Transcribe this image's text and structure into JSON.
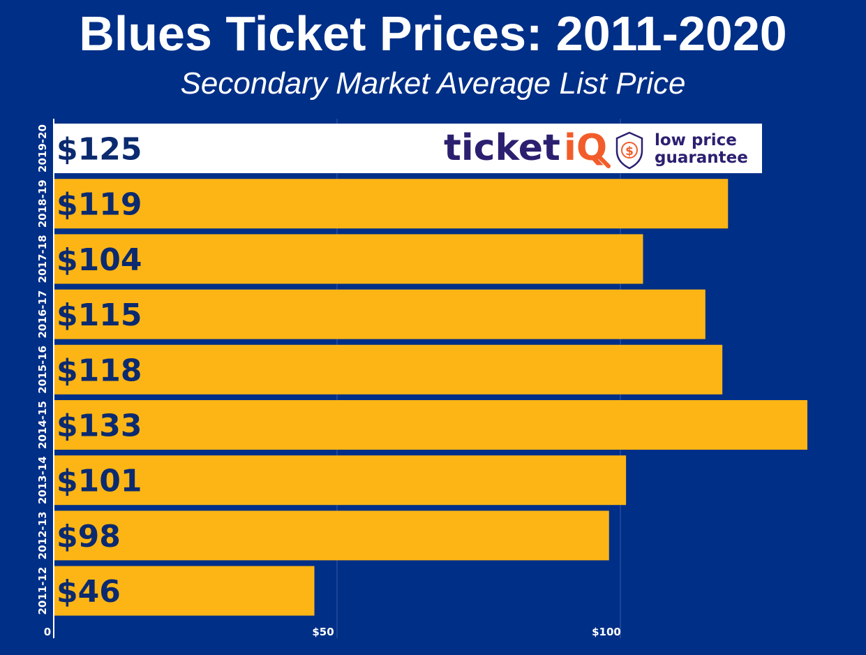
{
  "chart_data": {
    "type": "bar",
    "orientation": "horizontal",
    "title": "Blues Ticket Prices: 2011-2020",
    "subtitle": "Secondary Market Average List Price",
    "categories": [
      "2019-20",
      "2018-19",
      "2017-18",
      "2016-17",
      "2015-16",
      "2014-15",
      "2013-14",
      "2012-13",
      "2011-12"
    ],
    "values": [
      125,
      119,
      104,
      115,
      118,
      133,
      101,
      98,
      46
    ],
    "value_labels": [
      "$125",
      "$119",
      "$104",
      "$115",
      "$118",
      "$133",
      "$101",
      "$98",
      "$46"
    ],
    "highlight_category": "2019-20",
    "xlim": [
      0,
      133
    ],
    "x_ticks": [
      0,
      50,
      100
    ],
    "x_tick_labels": [
      "0",
      "$50",
      "$100"
    ],
    "grid": true,
    "colors": {
      "background": "#002F87",
      "bar": "#FDB515",
      "highlight_bar": "#FFFFFF",
      "bar_label": "#0B2A6F",
      "grid": "#3A5AA8"
    }
  },
  "logo": {
    "brand_ticket": "ticket",
    "brand_iq": "iQ",
    "tagline_line1": "low price",
    "tagline_line2": "guarantee",
    "badge_symbol": "$",
    "colors": {
      "brand": "#2B2070",
      "accent": "#F25C2B"
    }
  }
}
